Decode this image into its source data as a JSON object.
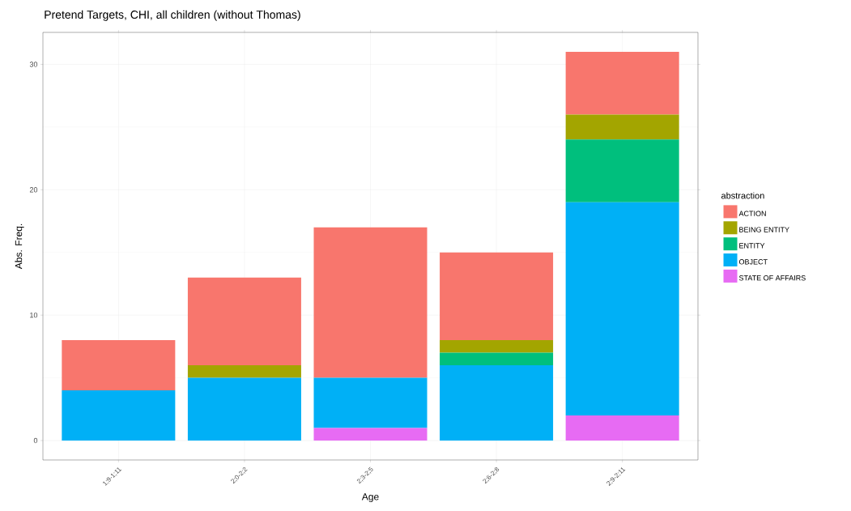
{
  "chart_data": {
    "type": "bar",
    "stacked": true,
    "title": "Pretend Targets, CHI, all children (without Thomas)",
    "xlabel": "Age",
    "ylabel": "Abs. Freq.",
    "legend_title": "abstraction",
    "categories": [
      "1;9-1;11",
      "2;0-2;2",
      "2;3-2;5",
      "2;6-2;8",
      "2;9-2;11"
    ],
    "series": [
      {
        "name": "STATE OF AFFAIRS",
        "color": "#e76bf3",
        "values": [
          0,
          0,
          1,
          0,
          2
        ]
      },
      {
        "name": "OBJECT",
        "color": "#00b0f6",
        "values": [
          4,
          5,
          4,
          6,
          17
        ]
      },
      {
        "name": "ENTITY",
        "color": "#00bf7d",
        "values": [
          0,
          0,
          0,
          1,
          5
        ]
      },
      {
        "name": "BEING ENTITY",
        "color": "#a3a500",
        "values": [
          0,
          1,
          0,
          1,
          2
        ]
      },
      {
        "name": "ACTION",
        "color": "#f8766d",
        "values": [
          4,
          7,
          12,
          7,
          5
        ]
      }
    ],
    "ylim": [
      -1.55,
      32.55
    ],
    "yticks": [
      0,
      10,
      20,
      30
    ],
    "grid": true,
    "legend": "right"
  }
}
